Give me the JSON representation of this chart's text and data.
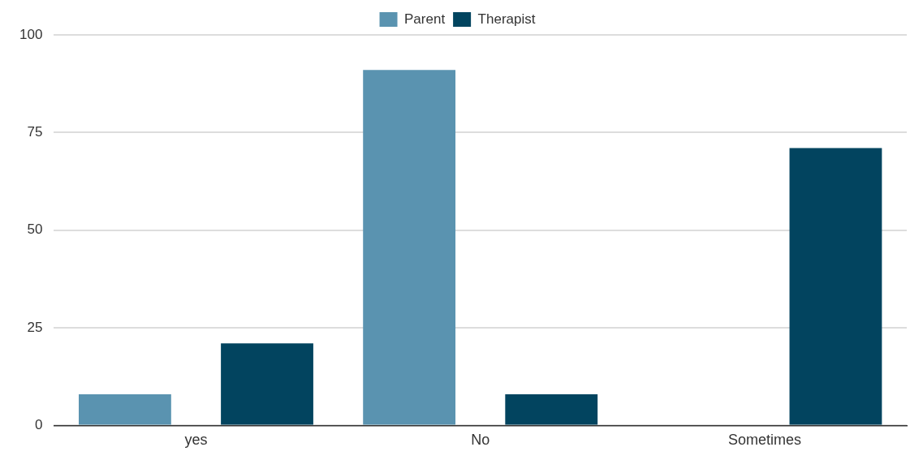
{
  "chart_data": {
    "type": "bar",
    "categories": [
      "yes",
      "No",
      "Sometimes"
    ],
    "series": [
      {
        "name": "Parent",
        "color": "#5a93b0",
        "values": [
          8,
          91,
          0
        ]
      },
      {
        "name": "Therapist",
        "color": "#02445f",
        "values": [
          21,
          8,
          71
        ]
      }
    ],
    "ylim": [
      0,
      100
    ],
    "yticks": [
      0,
      25,
      50,
      75,
      100
    ],
    "grid": "y",
    "legend": "top"
  }
}
